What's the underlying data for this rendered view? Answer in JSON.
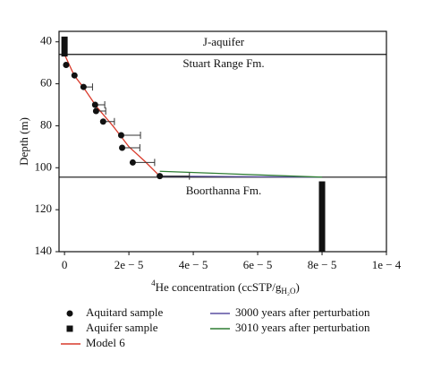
{
  "chart_data": {
    "type": "scatter",
    "y_label": "Depth (m)",
    "x_label": {
      "sup": "4",
      "main": "He concentration (ccSTP/g",
      "sub": "H₂O",
      "end": ")"
    },
    "xlim": [
      -1.7e-06,
      0.0001
    ],
    "xticks": [
      0,
      {
        "value": 2e-05,
        "label": "2e − 5"
      },
      {
        "value": 4e-05,
        "label": "4e − 5"
      },
      {
        "value": 6e-05,
        "label": "6e − 5"
      },
      {
        "value": 8e-05,
        "label": "8e − 5"
      },
      {
        "value": 0.0001,
        "label": "1e − 4"
      }
    ],
    "ylim": [
      35,
      140
    ],
    "yticks": [
      40,
      60,
      80,
      100,
      120,
      140
    ],
    "y_inverted": true,
    "boundaries": [
      46,
      104.5
    ],
    "annotations": [
      "J-aquifer",
      "Stuart Range Fm.",
      "Boorthanna Fm."
    ],
    "series": [
      {
        "name": "Aquitard sample",
        "color": "#111111",
        "marker": "circle",
        "x": [
          5e-07,
          3.1e-06,
          5.9e-06,
          9.5e-06,
          9.8e-06,
          1.2e-05,
          1.76e-05,
          1.79e-05,
          2.12e-05,
          2.96e-05
        ],
        "values": [
          51,
          56,
          61.5,
          70,
          73,
          78,
          84.5,
          90.5,
          97.5,
          104
        ],
        "errors": [
          null,
          null,
          2.8e-06,
          3e-06,
          3e-06,
          3.5e-06,
          6e-06,
          5.5e-06,
          6.8e-06,
          9.2e-06
        ]
      },
      {
        "name": "Aquifer sample",
        "color": "#111111",
        "marker": "square",
        "x": [
          0,
          8e-05
        ],
        "values": [
          37.5,
          106.5
        ],
        "depth_bottom": [
          47,
          140
        ]
      },
      {
        "name": "Model 6",
        "color": "#d93a2b",
        "marker": "line",
        "x": [
          0,
          3e-06,
          6e-06,
          1e-05,
          1.5e-05,
          2e-05,
          2.5e-05,
          2.96e-05
        ],
        "values": [
          46,
          56,
          62,
          71,
          80,
          90,
          97,
          104
        ]
      },
      {
        "name": "3000 years after perturbation",
        "color": "#5a4fa0",
        "marker": "line",
        "x": [
          2.96e-05,
          8e-05
        ],
        "values": [
          104,
          104.5
        ]
      },
      {
        "name": "3010 years after perturbation",
        "color": "#2e7d32",
        "marker": "line",
        "x": [
          2.96e-05,
          8e-05
        ],
        "values": [
          101.7,
          104.5
        ]
      }
    ]
  }
}
